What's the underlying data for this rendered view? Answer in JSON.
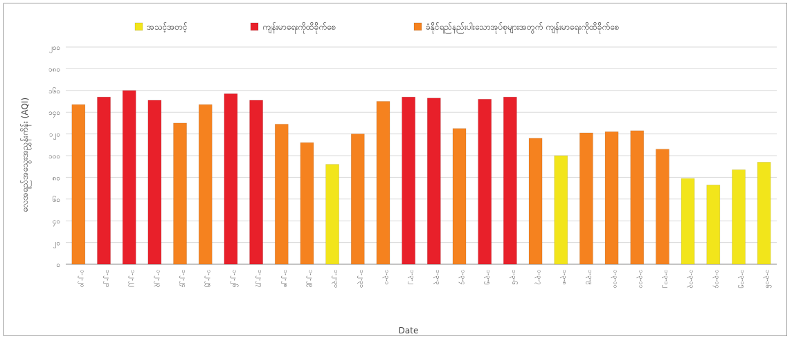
{
  "chart_data": {
    "type": "bar",
    "title": "",
    "xlabel": "Date",
    "ylabel": "လေအရည်အသွေးအညွှန်းကိန်း (AQI)",
    "ylim": [
      0,
      200
    ],
    "yticks": [
      {
        "value": 0,
        "label": "၀"
      },
      {
        "value": 20,
        "label": "၂၀"
      },
      {
        "value": 40,
        "label": "၄၀"
      },
      {
        "value": 60,
        "label": "၆၀"
      },
      {
        "value": 80,
        "label": "၈၀"
      },
      {
        "value": 100,
        "label": "၁၀၀"
      },
      {
        "value": 120,
        "label": "၁၂၀"
      },
      {
        "value": 140,
        "label": "၁၄၀"
      },
      {
        "value": 160,
        "label": "၁၆၀"
      },
      {
        "value": 180,
        "label": "၁၈၀"
      },
      {
        "value": 200,
        "label": "၂၀၀"
      }
    ],
    "grid": true,
    "legend_position": "top",
    "legend": [
      {
        "name": "အသင့်အတင့်",
        "color": "#f2e51b",
        "key": "moderate"
      },
      {
        "name": "ကျန်းမာရေးကိုထိခိုက်စေ",
        "color": "#e8202a",
        "key": "unhealthy"
      },
      {
        "name": "ခံနိုင်ရည်နည်းပါးသောအုပ်စုများအတွက် ကျန်းမာရေးကိုထိခိုက်စေ",
        "color": "#f5821f",
        "key": "sensitive"
      }
    ],
    "categories": [
      "၁-၂-၂၀",
      "၁-၂-၂၁",
      "၁-၂-၂၂",
      "၁-၂-၂၃",
      "၁-၂-၂၄",
      "၁-၂-၂၅",
      "၁-၂-၂၆",
      "၁-၂-၂၇",
      "၁-၂-၂၈",
      "၁-၂-၂၉",
      "၁-၂-၃၀",
      "၁-၂-၃၁",
      "၁-၃-၁",
      "၁-၃-၂",
      "၁-၃-၃",
      "၁-၃-၄",
      "၁-၃-၅",
      "၁-၃-၆",
      "၁-၃-၇",
      "၁-၃-၈",
      "၁-၃-၉",
      "၁-၃-၁၀",
      "၁-၃-၁၁",
      "၁-၃-၁၂",
      "၁-၃-၁၃",
      "၁-၃-၁၄",
      "၁-၃-၁၅",
      "၁-၃-၁၆"
    ],
    "values": [
      147,
      154,
      160,
      151,
      130,
      147,
      157,
      151,
      129,
      112,
      92,
      120,
      150,
      154,
      153,
      125,
      152,
      154,
      116,
      100,
      121,
      122,
      123,
      106,
      79,
      73,
      87,
      94
    ],
    "colors": [
      "#f5821f",
      "#e8202a",
      "#e8202a",
      "#e8202a",
      "#f5821f",
      "#f5821f",
      "#e8202a",
      "#e8202a",
      "#f5821f",
      "#f5821f",
      "#f2e51b",
      "#f5821f",
      "#f5821f",
      "#e8202a",
      "#e8202a",
      "#f5821f",
      "#e8202a",
      "#e8202a",
      "#f5821f",
      "#f2e51b",
      "#f5821f",
      "#f5821f",
      "#f5821f",
      "#f5821f",
      "#f2e51b",
      "#f2e51b",
      "#f2e51b",
      "#f2e51b"
    ]
  }
}
